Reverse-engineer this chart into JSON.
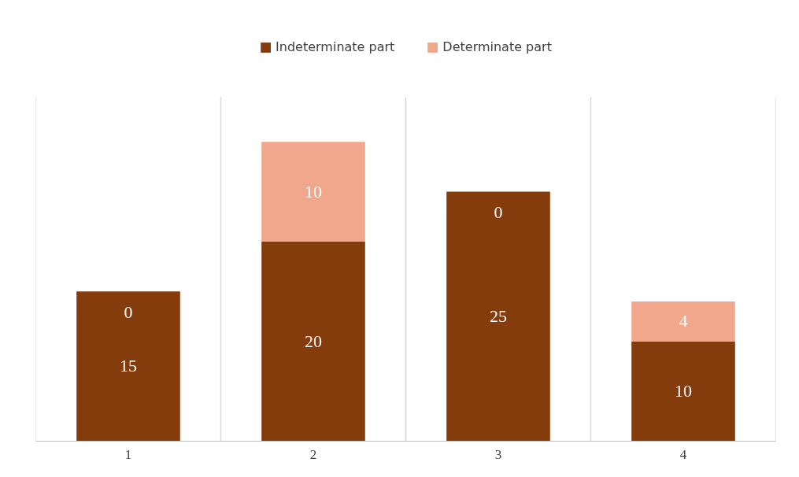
{
  "chart_data": {
    "type": "bar",
    "stacked": true,
    "categories": [
      "1",
      "2",
      "3",
      "4"
    ],
    "series": [
      {
        "name": "Indeterminate part",
        "color": "#843c0c",
        "values": [
          15,
          20,
          25,
          10
        ]
      },
      {
        "name": "Determinate part",
        "color": "#f1a78b",
        "values": [
          0,
          10,
          0,
          4
        ]
      }
    ],
    "data_labels": true,
    "legend": "top",
    "grid": "x"
  }
}
